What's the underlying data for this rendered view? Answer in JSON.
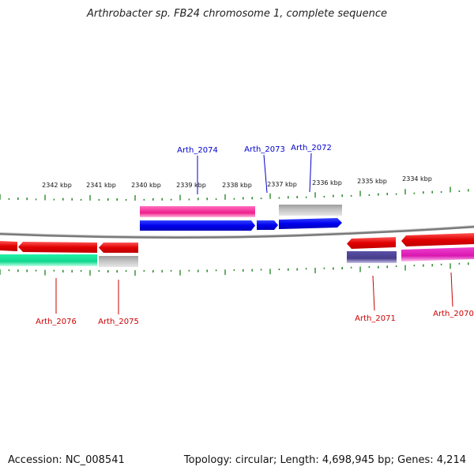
{
  "title": "Arthrobacter sp. FB24 chromosome 1, complete sequence",
  "footer": {
    "accession": "Accession: NC_008541",
    "stats": "Topology: circular; Length: 4,698,945 bp; Genes: 4,214"
  },
  "ticks": [
    "2342 kbp",
    "2341 kbp",
    "2340 kbp",
    "2339 kbp",
    "2338 kbp",
    "2337 kbp",
    "2336 kbp",
    "2335 kbp",
    "2334 kbp"
  ],
  "genes": [
    {
      "label": "Arth_2074",
      "strand": "top",
      "color": "#0000cc"
    },
    {
      "label": "Arth_2073",
      "strand": "top",
      "color": "#0000cc"
    },
    {
      "label": "Arth_2072",
      "strand": "top",
      "color": "#0000cc"
    },
    {
      "label": "Arth_2076",
      "strand": "bottom",
      "color": "#cc0000"
    },
    {
      "label": "Arth_2075",
      "strand": "bottom",
      "color": "#cc0000"
    },
    {
      "label": "Arth_2071",
      "strand": "bottom",
      "color": "#cc0000"
    },
    {
      "label": "Arth_2070",
      "strand": "bottom",
      "color": "#cc0000"
    }
  ],
  "colors": {
    "backbone": "#808080",
    "tick": "#2e8b2e",
    "forward_cds": "#0000ee",
    "reverse_cds": "#ee0000",
    "pink": "#ee1e8c",
    "gray": "#bdbdbd",
    "teal": "#17e096",
    "navy": "#4a3f8f",
    "magenta": "#dd18b4"
  }
}
